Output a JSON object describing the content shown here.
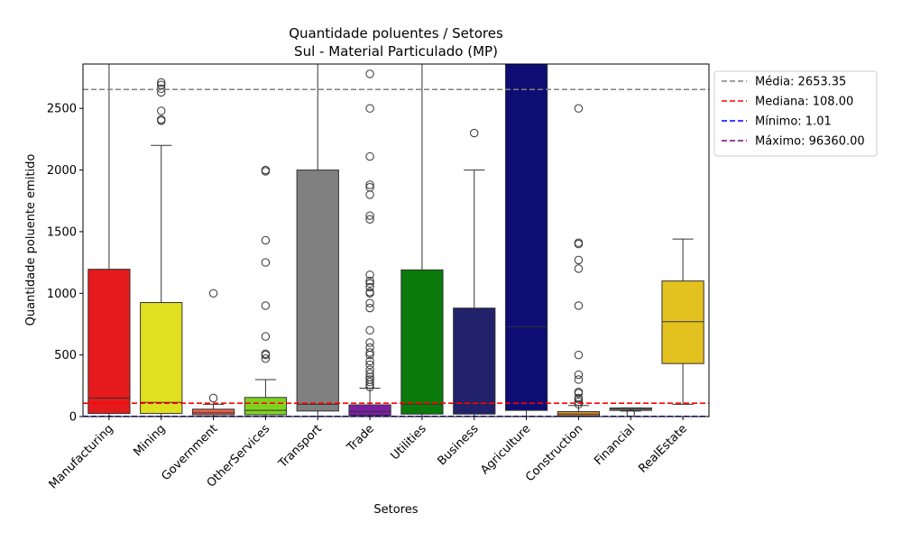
{
  "chart_data": {
    "type": "box",
    "title": "Quantidade poluentes / Setores",
    "subtitle": "Sul - Material Particulado (MP)",
    "xlabel": "Setores",
    "ylabel": "Quantidade poluente emitido",
    "ylim": [
      0,
      2860
    ],
    "yticks": [
      0,
      500,
      1000,
      1500,
      2000,
      2500
    ],
    "grid": false,
    "legend_position": "outside-top-right",
    "reference_lines": [
      {
        "label": "Média: 2653.35",
        "value": 2653.35,
        "color": "#808080"
      },
      {
        "label": "Mediana: 108.00",
        "value": 108.0,
        "color": "#ff0000"
      },
      {
        "label": "Mínimo: 1.01",
        "value": 1.01,
        "color": "#0000ff"
      },
      {
        "label": "Máximo: 96360.00",
        "value": 96360.0,
        "color": "#800080"
      }
    ],
    "categories": [
      "Manufacturing",
      "Mining",
      "Government",
      "OtherServices",
      "Transport",
      "Trade",
      "Utilities",
      "Business",
      "Agriculture",
      "Construction",
      "Financial",
      "RealEstate"
    ],
    "boxes": [
      {
        "category": "Manufacturing",
        "color": "#e41a1c",
        "q1": 25,
        "median": 150,
        "q3": 1195,
        "whisker_low": 1,
        "whisker_high": 2900,
        "outliers": []
      },
      {
        "category": "Mining",
        "color": "#e0e020",
        "q1": 25,
        "median": 115,
        "q3": 925,
        "whisker_low": 1,
        "whisker_high": 2200,
        "outliers": [
          2400,
          2410,
          2480,
          2630,
          2660,
          2690,
          2710
        ]
      },
      {
        "category": "Government",
        "color": "#e8614b",
        "q1": 15,
        "median": 30,
        "q3": 60,
        "whisker_low": 2,
        "whisker_high": 100,
        "outliers": [
          150,
          1000
        ]
      },
      {
        "category": "OtherServices",
        "color": "#7fd320",
        "q1": 15,
        "median": 50,
        "q3": 155,
        "whisker_low": 1,
        "whisker_high": 300,
        "outliers": [
          470,
          500,
          510,
          650,
          900,
          1250,
          1430,
          1990,
          2000
        ]
      },
      {
        "category": "Transport",
        "color": "#808080",
        "q1": 45,
        "median": 100,
        "q3": 2000,
        "whisker_low": 1,
        "whisker_high": 2900,
        "outliers": []
      },
      {
        "category": "Trade",
        "color": "#7b1fa2",
        "q1": 10,
        "median": 40,
        "q3": 95,
        "whisker_low": 1,
        "whisker_high": 230,
        "outliers": [
          240,
          260,
          280,
          300,
          320,
          350,
          380,
          420,
          450,
          500,
          520,
          560,
          600,
          700,
          880,
          920,
          1000,
          1010,
          1050,
          1080,
          1100,
          1150,
          1600,
          1630,
          1800,
          1860,
          1880,
          2110,
          2500,
          2780
        ]
      },
      {
        "category": "Utilities",
        "color": "#0a7a0a",
        "q1": 20,
        "median": 100,
        "q3": 1190,
        "whisker_low": 1,
        "whisker_high": 2900,
        "outliers": []
      },
      {
        "category": "Business",
        "color": "#22226b",
        "q1": 20,
        "median": 110,
        "q3": 880,
        "whisker_low": 1,
        "whisker_high": 2000,
        "outliers": [
          2300
        ]
      },
      {
        "category": "Agriculture",
        "color": "#0d0d73",
        "q1": 50,
        "median": 730,
        "q3": 2900,
        "whisker_low": 1,
        "whisker_high": 2900,
        "outliers": []
      },
      {
        "category": "Construction",
        "color": "#d9912e",
        "q1": 5,
        "median": 20,
        "q3": 40,
        "whisker_low": 1,
        "whisker_high": 90,
        "outliers": [
          100,
          120,
          140,
          150,
          190,
          200,
          300,
          340,
          500,
          900,
          1200,
          1270,
          1400,
          1410,
          2500
        ]
      },
      {
        "category": "Financial",
        "color": "#999999",
        "q1": 50,
        "median": 60,
        "q3": 70,
        "whisker_low": 45,
        "whisker_high": 70,
        "outliers": [
          25
        ]
      },
      {
        "category": "RealEstate",
        "color": "#e3c11e",
        "q1": 430,
        "median": 770,
        "q3": 1100,
        "whisker_low": 100,
        "whisker_high": 1440,
        "outliers": []
      }
    ]
  }
}
